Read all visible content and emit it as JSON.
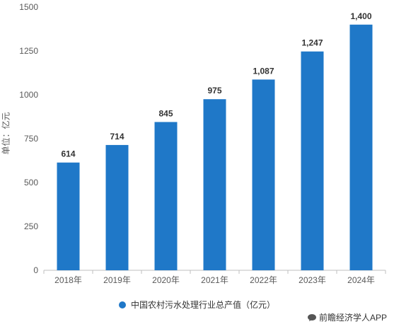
{
  "chart_data": {
    "type": "bar",
    "categories": [
      "2018年",
      "2019年",
      "2020年",
      "2021年",
      "2022年",
      "2023年",
      "2024年"
    ],
    "series": [
      {
        "name": "中国农村污水处理行业总产值（亿元）",
        "values": [
          614,
          714,
          845,
          975,
          1087,
          1247,
          1400
        ],
        "data_labels": [
          "614",
          "714",
          "845",
          "975",
          "1,087",
          "1,247",
          "1,400"
        ]
      }
    ],
    "ylabel": "单位：亿元",
    "ylim": [
      0,
      1500
    ],
    "yticks": [
      0,
      250,
      500,
      750,
      1000,
      1250,
      1500
    ],
    "grid": false,
    "legend_position": "bottom-center",
    "bar_color": "#1f78c8"
  },
  "source_text": "前瞻经济学人APP"
}
